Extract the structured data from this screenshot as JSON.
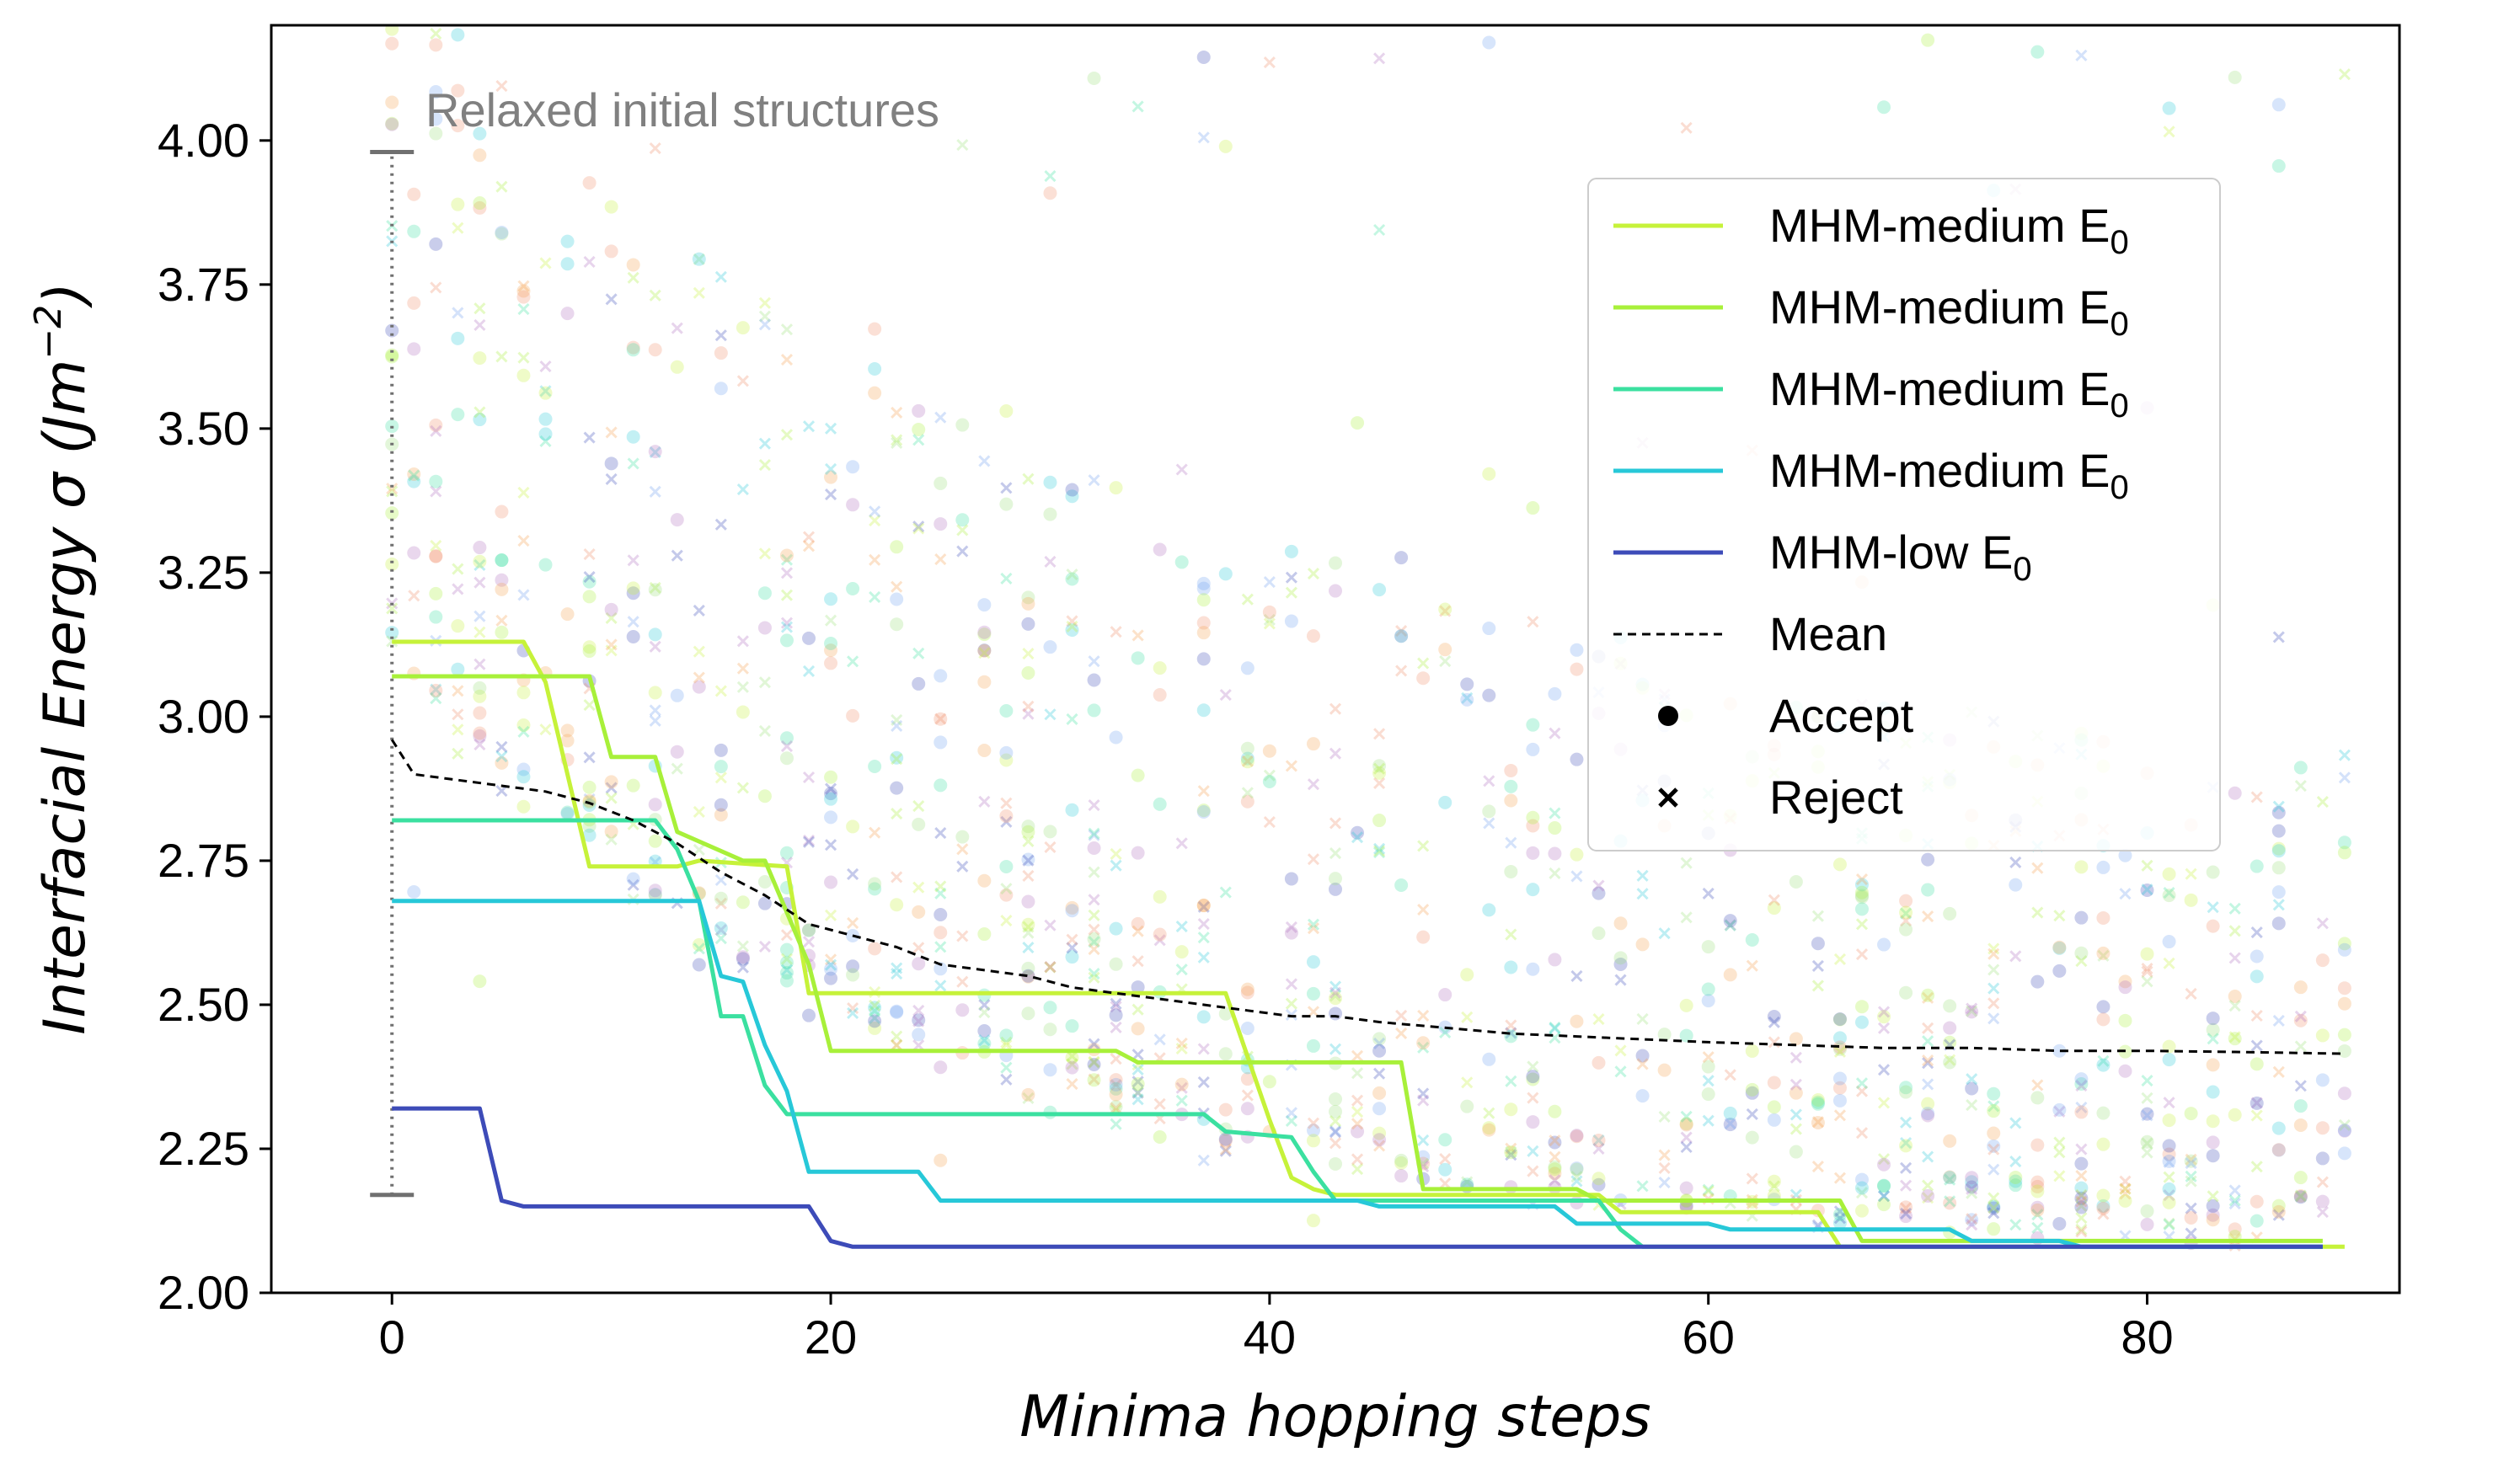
{
  "chart_data": {
    "type": "line",
    "title": "",
    "xlabel": "Minima hopping steps",
    "ylabel_main": "Interfacial Energy σ (Jm",
    "ylabel_sup": "−2",
    "ylabel_end": ")",
    "xlim": [
      -5.5,
      91.5
    ],
    "ylim": [
      2.0,
      4.2
    ],
    "xticks": [
      0,
      20,
      40,
      60,
      80
    ],
    "xtick_labels": [
      "0",
      "20",
      "40",
      "60",
      "80"
    ],
    "yticks": [
      2.0,
      2.25,
      2.5,
      2.75,
      3.0,
      3.25,
      3.5,
      3.75,
      4.0
    ],
    "ytick_labels": [
      "2.00",
      "2.25",
      "2.50",
      "2.75",
      "3.00",
      "3.25",
      "3.50",
      "3.75",
      "4.00"
    ],
    "grid": false,
    "legend_position": "upper-right",
    "annotation": {
      "text": "Relaxed initial structures",
      "x": 0,
      "y_range": [
        2.17,
        3.98
      ]
    },
    "series": [
      {
        "name": "MHM-medium E",
        "sub": "0",
        "color": "#c6f23a",
        "points": [
          [
            0,
            3.13
          ],
          [
            6,
            3.13
          ],
          [
            7,
            3.06
          ],
          [
            9,
            2.74
          ],
          [
            13,
            2.74
          ],
          [
            14,
            2.75
          ],
          [
            18,
            2.74
          ],
          [
            19,
            2.52
          ],
          [
            38,
            2.52
          ],
          [
            39,
            2.41
          ],
          [
            40,
            2.3
          ],
          [
            41,
            2.2
          ],
          [
            42,
            2.18
          ],
          [
            43,
            2.17
          ],
          [
            55,
            2.17
          ],
          [
            56,
            2.14
          ],
          [
            65,
            2.14
          ],
          [
            66,
            2.08
          ],
          [
            89,
            2.08
          ]
        ]
      },
      {
        "name": "MHM-medium E",
        "sub": "0",
        "color": "#a8f03a",
        "points": [
          [
            0,
            3.07
          ],
          [
            9,
            3.07
          ],
          [
            10,
            2.93
          ],
          [
            12,
            2.93
          ],
          [
            13,
            2.8
          ],
          [
            16,
            2.75
          ],
          [
            17,
            2.75
          ],
          [
            18,
            2.66
          ],
          [
            19,
            2.57
          ],
          [
            20,
            2.42
          ],
          [
            33,
            2.42
          ],
          [
            34,
            2.4
          ],
          [
            46,
            2.4
          ],
          [
            47,
            2.18
          ],
          [
            54,
            2.18
          ],
          [
            55,
            2.16
          ],
          [
            66,
            2.16
          ],
          [
            67,
            2.09
          ],
          [
            88,
            2.09
          ]
        ]
      },
      {
        "name": "MHM-medium E",
        "sub": "0",
        "color": "#3be0a0",
        "points": [
          [
            0,
            2.82
          ],
          [
            12,
            2.82
          ],
          [
            13,
            2.77
          ],
          [
            14,
            2.68
          ],
          [
            15,
            2.48
          ],
          [
            16,
            2.48
          ],
          [
            17,
            2.36
          ],
          [
            18,
            2.31
          ],
          [
            37,
            2.31
          ],
          [
            38,
            2.28
          ],
          [
            41,
            2.27
          ],
          [
            42,
            2.21
          ],
          [
            43,
            2.16
          ],
          [
            55,
            2.16
          ],
          [
            56,
            2.11
          ],
          [
            57,
            2.08
          ],
          [
            88,
            2.08
          ]
        ]
      },
      {
        "name": "MHM-medium E",
        "sub": "0",
        "color": "#27c8d8",
        "points": [
          [
            0,
            2.68
          ],
          [
            14,
            2.68
          ],
          [
            15,
            2.55
          ],
          [
            16,
            2.54
          ],
          [
            17,
            2.43
          ],
          [
            18,
            2.35
          ],
          [
            19,
            2.21
          ],
          [
            24,
            2.21
          ],
          [
            25,
            2.16
          ],
          [
            44,
            2.16
          ],
          [
            45,
            2.15
          ],
          [
            53,
            2.15
          ],
          [
            54,
            2.12
          ],
          [
            60,
            2.12
          ],
          [
            61,
            2.11
          ],
          [
            71,
            2.11
          ],
          [
            72,
            2.09
          ],
          [
            76,
            2.09
          ],
          [
            77,
            2.08
          ],
          [
            88,
            2.08
          ]
        ]
      },
      {
        "name": "MHM-low E",
        "sub": "0",
        "color": "#3d4bb8",
        "points": [
          [
            0,
            2.32
          ],
          [
            4,
            2.32
          ],
          [
            5,
            2.16
          ],
          [
            6,
            2.15
          ],
          [
            19,
            2.15
          ],
          [
            20,
            2.09
          ],
          [
            21,
            2.08
          ],
          [
            88,
            2.08
          ]
        ]
      },
      {
        "name": "Mean",
        "sub": "",
        "color": "#000000",
        "dashed": true,
        "points": [
          [
            0,
            2.96
          ],
          [
            1,
            2.9
          ],
          [
            3,
            2.89
          ],
          [
            5,
            2.88
          ],
          [
            7,
            2.87
          ],
          [
            9,
            2.85
          ],
          [
            11,
            2.82
          ],
          [
            13,
            2.78
          ],
          [
            15,
            2.73
          ],
          [
            17,
            2.69
          ],
          [
            19,
            2.64
          ],
          [
            21,
            2.62
          ],
          [
            23,
            2.6
          ],
          [
            25,
            2.57
          ],
          [
            27,
            2.56
          ],
          [
            29,
            2.55
          ],
          [
            31,
            2.53
          ],
          [
            33,
            2.52
          ],
          [
            35,
            2.51
          ],
          [
            37,
            2.5
          ],
          [
            39,
            2.49
          ],
          [
            41,
            2.48
          ],
          [
            43,
            2.48
          ],
          [
            45,
            2.47
          ],
          [
            48,
            2.46
          ],
          [
            51,
            2.45
          ],
          [
            54,
            2.445
          ],
          [
            57,
            2.44
          ],
          [
            60,
            2.435
          ],
          [
            64,
            2.43
          ],
          [
            68,
            2.425
          ],
          [
            72,
            2.425
          ],
          [
            76,
            2.42
          ],
          [
            80,
            2.42
          ],
          [
            84,
            2.418
          ],
          [
            89,
            2.415
          ]
        ]
      }
    ],
    "marker_legend": [
      {
        "label": "Accept",
        "marker": "circle"
      },
      {
        "label": "Reject",
        "marker": "x"
      }
    ]
  }
}
